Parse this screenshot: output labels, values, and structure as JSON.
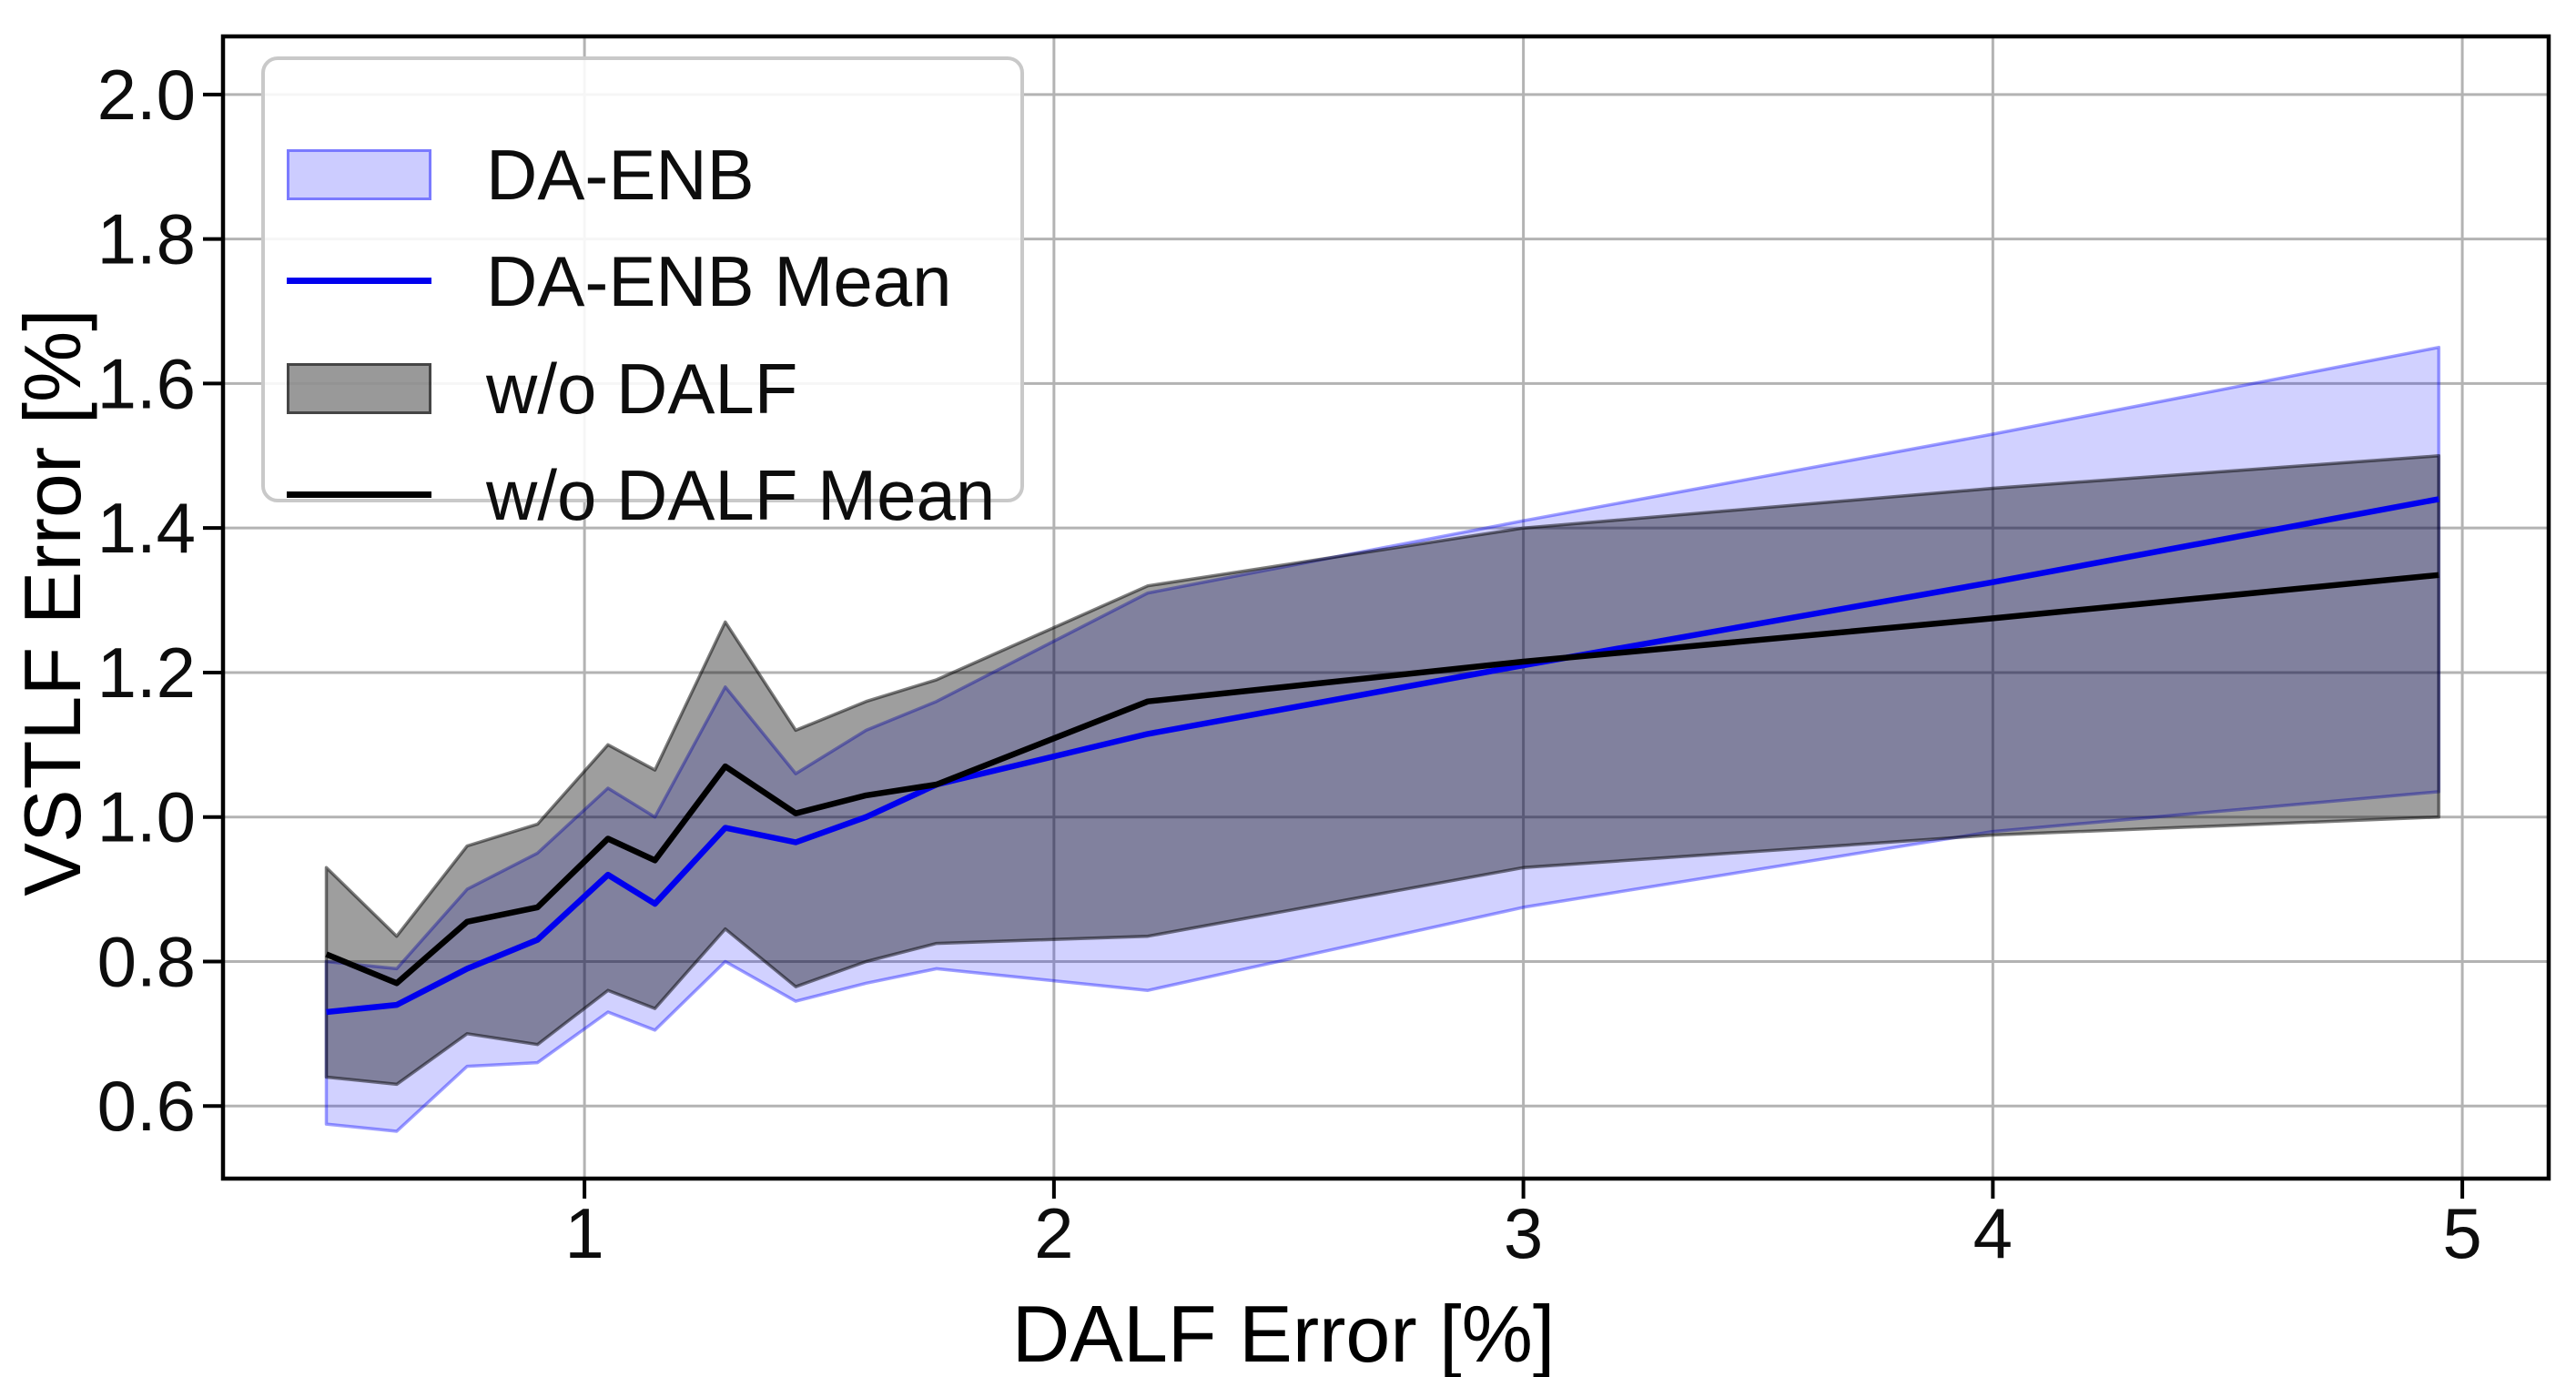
{
  "figure": {
    "background": "#ffffff",
    "grid_color": "#b3b3b3",
    "spine_color": "#000000",
    "tick_label_color": "#0d0d0d"
  },
  "chart_data": {
    "type": "line",
    "title": "",
    "xlabel": "DALF Error [%]",
    "ylabel": "VSTLF Error [%]",
    "xlim": [
      0.23,
      5.184
    ],
    "ylim": [
      0.4995,
      2.0805
    ],
    "grid": true,
    "x_ticks": [
      1,
      2,
      3,
      4,
      5
    ],
    "x_tick_labels": [
      "1",
      "2",
      "3",
      "4",
      "5"
    ],
    "y_ticks": [
      0.6,
      0.8,
      1.0,
      1.2,
      1.4,
      1.6,
      1.8,
      2.0
    ],
    "y_tick_labels": [
      "0.6",
      "0.8",
      "1.0",
      "1.2",
      "1.4",
      "1.6",
      "1.8",
      "2.0"
    ],
    "x": [
      0.45,
      0.6,
      0.75,
      0.9,
      1.05,
      1.15,
      1.3,
      1.45,
      1.6,
      1.75,
      2.2,
      3.0,
      4.0,
      4.95
    ],
    "series": [
      {
        "name": "DA-ENB",
        "kind": "band",
        "upper": [
          0.8,
          0.79,
          0.9,
          0.95,
          1.04,
          1.0,
          1.18,
          1.06,
          1.12,
          1.16,
          1.31,
          1.41,
          1.53,
          1.65
        ],
        "lower": [
          0.575,
          0.565,
          0.655,
          0.66,
          0.73,
          0.705,
          0.8,
          0.745,
          0.77,
          0.79,
          0.76,
          0.875,
          0.98,
          1.035
        ],
        "color": "#0000ff",
        "fill_opacity": 0.18,
        "edge_opacity": 0.38,
        "edge_width": 3.5
      },
      {
        "name": "w/o DALF",
        "kind": "band",
        "upper": [
          0.93,
          0.835,
          0.96,
          0.99,
          1.1,
          1.065,
          1.27,
          1.12,
          1.16,
          1.19,
          1.32,
          1.4,
          1.455,
          1.5
        ],
        "lower": [
          0.64,
          0.63,
          0.7,
          0.685,
          0.76,
          0.735,
          0.845,
          0.765,
          0.8,
          0.825,
          0.835,
          0.93,
          0.975,
          1.0
        ],
        "color": "#000000",
        "fill_opacity": 0.38,
        "edge_opacity": 0.5,
        "edge_width": 3.5
      },
      {
        "name": "DA-ENB Mean",
        "kind": "line",
        "values": [
          0.73,
          0.74,
          0.79,
          0.83,
          0.92,
          0.88,
          0.985,
          0.965,
          1.0,
          1.045,
          1.115,
          1.21,
          1.325,
          1.44
        ],
        "color": "#0000ee",
        "width": 6.5
      },
      {
        "name": "w/o DALF Mean",
        "kind": "line",
        "values": [
          0.81,
          0.77,
          0.855,
          0.875,
          0.97,
          0.94,
          1.07,
          1.005,
          1.03,
          1.045,
          1.16,
          1.215,
          1.275,
          1.335
        ],
        "color": "#000000",
        "width": 6.5
      }
    ],
    "legend": {
      "position": "upper left",
      "entries": [
        {
          "label": "DA-ENB",
          "swatch": "patch",
          "color": "#0000ff",
          "fill_opacity": 0.2,
          "edge_opacity": 0.4
        },
        {
          "label": "DA-ENB Mean",
          "swatch": "line",
          "color": "#0000ee"
        },
        {
          "label": "w/o DALF",
          "swatch": "patch",
          "color": "#000000",
          "fill_opacity": 0.4,
          "edge_opacity": 0.55
        },
        {
          "label": "w/o DALF Mean",
          "swatch": "line",
          "color": "#000000"
        }
      ]
    }
  }
}
